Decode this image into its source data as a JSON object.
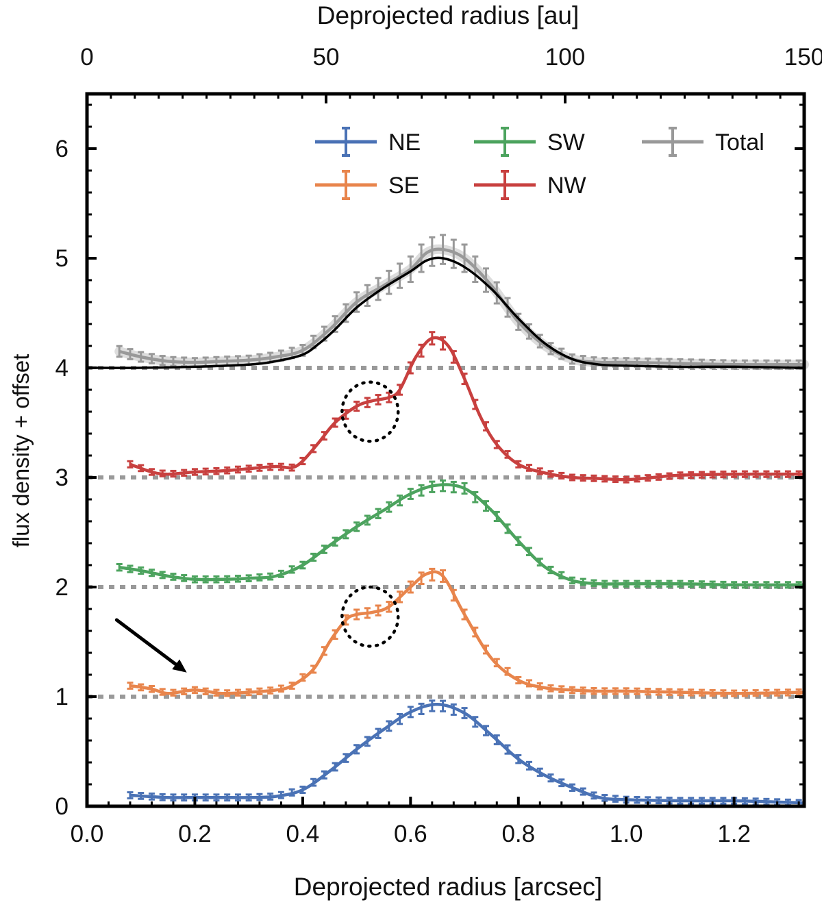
{
  "chart_data": {
    "type": "line",
    "title": "",
    "xlabel": "Deprojected radius [arcsec]",
    "x2label": "Deprojected radius [au]",
    "ylabel": "flux density + offset",
    "xlim": [
      0.0,
      1.33
    ],
    "x2lim": [
      0,
      150
    ],
    "ylim": [
      0,
      6.5
    ],
    "xticks": [
      0.0,
      0.2,
      0.4,
      0.6,
      0.8,
      1.0,
      1.2
    ],
    "xtick_labels": [
      "0.0",
      "0.2",
      "0.4",
      "0.6",
      "0.8",
      "1.0",
      "1.2"
    ],
    "x2ticks": [
      0,
      50,
      100,
      150
    ],
    "x2tick_labels": [
      "0",
      "50",
      "100",
      "150"
    ],
    "yticks": [
      0,
      1,
      2,
      3,
      4,
      5,
      6
    ],
    "ytick_labels": [
      "0",
      "1",
      "2",
      "3",
      "4",
      "5",
      "6"
    ],
    "grid": false,
    "legend_position": "top-right",
    "offset_baselines": [
      1,
      2,
      3,
      4
    ],
    "series": [
      {
        "name": "NE",
        "color": "#4a72b5",
        "offset": 0,
        "x": [
          0.08,
          0.15,
          0.2,
          0.25,
          0.3,
          0.35,
          0.4,
          0.45,
          0.5,
          0.55,
          0.6,
          0.65,
          0.7,
          0.75,
          0.8,
          0.85,
          0.9,
          0.95,
          1.0,
          1.1,
          1.2,
          1.33
        ],
        "y": [
          0.1,
          0.08,
          0.08,
          0.08,
          0.08,
          0.09,
          0.15,
          0.32,
          0.52,
          0.7,
          0.86,
          0.93,
          0.85,
          0.65,
          0.43,
          0.28,
          0.17,
          0.08,
          0.06,
          0.05,
          0.05,
          0.03
        ]
      },
      {
        "name": "SE",
        "color": "#e8854c",
        "offset": 1,
        "x": [
          0.08,
          0.12,
          0.15,
          0.2,
          0.25,
          0.3,
          0.35,
          0.38,
          0.42,
          0.45,
          0.48,
          0.5,
          0.53,
          0.56,
          0.6,
          0.63,
          0.66,
          0.7,
          0.75,
          0.8,
          0.85,
          0.9,
          0.95,
          1.0,
          1.1,
          1.2,
          1.33
        ],
        "y": [
          1.1,
          1.07,
          1.03,
          1.06,
          1.03,
          1.04,
          1.06,
          1.1,
          1.25,
          1.5,
          1.7,
          1.75,
          1.77,
          1.82,
          2.0,
          2.12,
          2.1,
          1.75,
          1.35,
          1.15,
          1.08,
          1.06,
          1.05,
          1.05,
          1.04,
          1.03,
          1.04
        ]
      },
      {
        "name": "SW",
        "color": "#4ca35e",
        "offset": 2,
        "x": [
          0.06,
          0.1,
          0.15,
          0.2,
          0.25,
          0.3,
          0.35,
          0.4,
          0.45,
          0.5,
          0.55,
          0.6,
          0.65,
          0.7,
          0.75,
          0.8,
          0.85,
          0.9,
          0.95,
          1.0,
          1.1,
          1.2,
          1.33
        ],
        "y": [
          2.18,
          2.15,
          2.1,
          2.07,
          2.07,
          2.08,
          2.1,
          2.2,
          2.38,
          2.55,
          2.7,
          2.85,
          2.93,
          2.9,
          2.7,
          2.42,
          2.18,
          2.06,
          2.03,
          2.03,
          2.03,
          2.02,
          2.02
        ]
      },
      {
        "name": "NW",
        "color": "#c8403f",
        "offset": 3,
        "x": [
          0.08,
          0.12,
          0.15,
          0.2,
          0.25,
          0.3,
          0.35,
          0.38,
          0.4,
          0.43,
          0.46,
          0.5,
          0.53,
          0.56,
          0.58,
          0.61,
          0.64,
          0.67,
          0.7,
          0.73,
          0.76,
          0.8,
          0.85,
          0.9,
          0.95,
          1.0,
          1.05,
          1.1,
          1.2,
          1.33
        ],
        "y": [
          3.12,
          3.05,
          3.03,
          3.05,
          3.06,
          3.08,
          3.1,
          3.09,
          3.15,
          3.32,
          3.5,
          3.65,
          3.7,
          3.73,
          3.8,
          4.1,
          4.27,
          4.2,
          3.9,
          3.55,
          3.3,
          3.12,
          3.04,
          3.0,
          2.99,
          2.98,
          3.0,
          3.02,
          3.03,
          3.03
        ]
      },
      {
        "name": "Total",
        "color": "#999999",
        "offset": 4,
        "x": [
          0.06,
          0.1,
          0.15,
          0.2,
          0.25,
          0.3,
          0.35,
          0.4,
          0.45,
          0.5,
          0.55,
          0.6,
          0.63,
          0.66,
          0.7,
          0.75,
          0.8,
          0.85,
          0.9,
          0.95,
          1.0,
          1.1,
          1.2,
          1.33
        ],
        "y": [
          4.15,
          4.1,
          4.06,
          4.05,
          4.06,
          4.07,
          4.1,
          4.16,
          4.35,
          4.6,
          4.75,
          4.9,
          5.05,
          5.08,
          5.0,
          4.75,
          4.42,
          4.2,
          4.08,
          4.05,
          4.05,
          4.04,
          4.03,
          4.03
        ]
      }
    ],
    "model_curve": {
      "color": "#000000",
      "x": [
        0.0,
        0.1,
        0.2,
        0.3,
        0.35,
        0.4,
        0.43,
        0.46,
        0.5,
        0.55,
        0.6,
        0.63,
        0.66,
        0.7,
        0.75,
        0.8,
        0.85,
        0.9,
        0.95,
        1.0,
        1.1,
        1.2,
        1.33
      ],
      "y": [
        4.0,
        4.0,
        4.01,
        4.03,
        4.06,
        4.12,
        4.22,
        4.35,
        4.55,
        4.73,
        4.88,
        4.98,
        5.0,
        4.92,
        4.72,
        4.45,
        4.22,
        4.08,
        4.03,
        4.02,
        4.01,
        4.01,
        4.0
      ]
    },
    "annotations": [
      {
        "type": "dotted-circle",
        "x": 0.525,
        "y": 3.6,
        "rx": 0.052,
        "ry": 0.27
      },
      {
        "type": "dotted-circle",
        "x": 0.525,
        "y": 1.73,
        "rx": 0.052,
        "ry": 0.27
      },
      {
        "type": "arrow",
        "from": [
          0.055,
          1.7
        ],
        "to": [
          0.185,
          1.22
        ]
      }
    ]
  }
}
